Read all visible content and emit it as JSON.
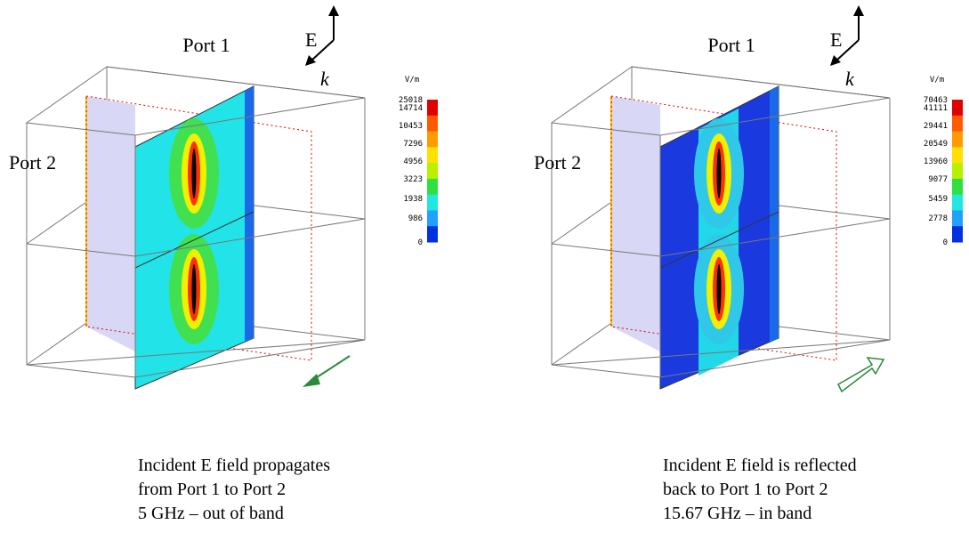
{
  "panels": [
    {
      "port_1": "Port 1",
      "port_2": "Port 2",
      "e_label": "E",
      "k_label": "k",
      "unit": "V/m",
      "scale_labels": [
        25018,
        14714,
        10453,
        7296,
        4956,
        3223,
        1938,
        986,
        0
      ],
      "caption": [
        "Incident E field propagates",
        "from Port 1 to Port 2",
        "5 GHz – out of band"
      ]
    },
    {
      "port_1": "Port 1",
      "port_2": "Port 2",
      "e_label": "E",
      "k_label": "k",
      "unit": "V/m",
      "scale_labels": [
        70463,
        41111,
        29441,
        20549,
        13960,
        9077,
        5459,
        2778,
        0
      ],
      "caption": [
        "Incident E field is reflected",
        "back to Port 1 to Port 2",
        "15.67 GHz – in band"
      ]
    }
  ]
}
